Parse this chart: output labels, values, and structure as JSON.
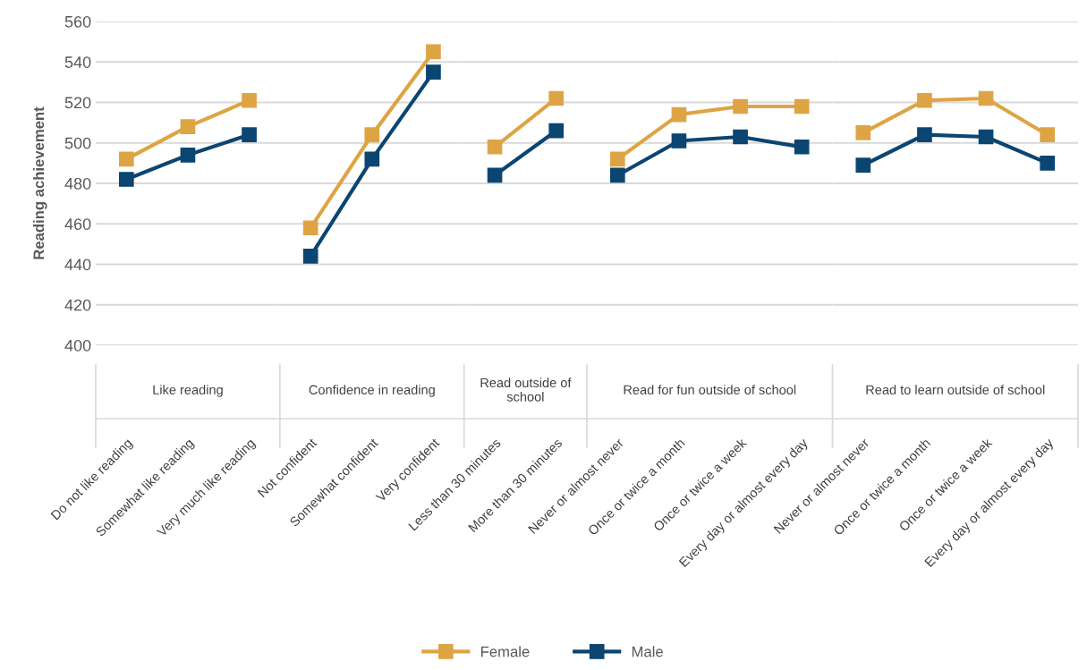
{
  "chart_data": [
    {
      "type": "line",
      "xlabel": "Like reading",
      "ylabel": "Reading achievement",
      "categories": [
        "Do not like reading",
        "Somewhat like reading",
        "Very much like reading"
      ],
      "ylim": [
        400,
        560
      ],
      "yticks": [
        400,
        420,
        440,
        460,
        480,
        500,
        520,
        540,
        560
      ],
      "grid": "y",
      "marker": "square",
      "line_style": "solid",
      "legend": "bottom",
      "series": [
        {
          "name": "Female",
          "color": "#dea444",
          "values": [
            492,
            508,
            521
          ]
        },
        {
          "name": "Male",
          "color": "#0b4571",
          "values": [
            482,
            494,
            504
          ]
        }
      ]
    },
    {
      "type": "line",
      "xlabel": "Confidence in reading",
      "categories": [
        "Not confident",
        "Somewhat confident",
        "Very confident"
      ],
      "ylim": [
        400,
        560
      ],
      "yticks": [
        400,
        420,
        440,
        460,
        480,
        500,
        520,
        540,
        560
      ],
      "grid": "y",
      "marker": "square",
      "line_style": "solid",
      "tick_labels": "x",
      "series": [
        {
          "name": "Female",
          "color": "#dea444",
          "values": [
            458,
            504,
            545
          ]
        },
        {
          "name": "Male",
          "color": "#0b4571",
          "values": [
            444,
            492,
            535
          ]
        }
      ]
    },
    {
      "type": "line",
      "xlabel": "Read outside of school",
      "categories": [
        "Less than 30 minutes",
        "More than 30 minutes"
      ],
      "ylim": [
        400,
        560
      ],
      "yticks": [
        400,
        420,
        440,
        460,
        480,
        500,
        520,
        540,
        560
      ],
      "grid": "y",
      "marker": "square",
      "line_style": "solid",
      "tick_labels": "x",
      "series": [
        {
          "name": "Female",
          "color": "#dea444",
          "values": [
            498,
            522
          ]
        },
        {
          "name": "Male",
          "color": "#0b4571",
          "values": [
            484,
            506
          ]
        }
      ]
    },
    {
      "type": "line",
      "xlabel": "Read for fun outside of school",
      "categories": [
        "Never or almost never",
        "Once or twice a month",
        "Once or twice a week",
        "Every day or almost every day"
      ],
      "ylim": [
        400,
        560
      ],
      "yticks": [
        400,
        420,
        440,
        460,
        480,
        500,
        520,
        540,
        560
      ],
      "grid": "y",
      "marker": "square",
      "line_style": "solid",
      "tick_labels": "x",
      "series": [
        {
          "name": "Female",
          "color": "#dea444",
          "values": [
            492,
            514,
            518,
            518
          ]
        },
        {
          "name": "Male",
          "color": "#0b4571",
          "values": [
            484,
            501,
            503,
            498
          ]
        }
      ]
    },
    {
      "type": "line",
      "xlabel": "Read to learn outside of school",
      "categories": [
        "Never or almost never",
        "Once or twice a month",
        "Once or twice a week",
        "Every day or almost every day"
      ],
      "ylim": [
        400,
        560
      ],
      "yticks": [
        400,
        420,
        440,
        460,
        480,
        500,
        520,
        540,
        560
      ],
      "grid": "y",
      "marker": "square",
      "line_style": "solid",
      "tick_labels": "x",
      "series": [
        {
          "name": "Female",
          "color": "#dea444",
          "values": [
            505,
            521,
            522,
            504
          ]
        },
        {
          "name": "Male",
          "color": "#0b4571",
          "values": [
            489,
            504,
            503,
            490
          ]
        }
      ]
    }
  ]
}
